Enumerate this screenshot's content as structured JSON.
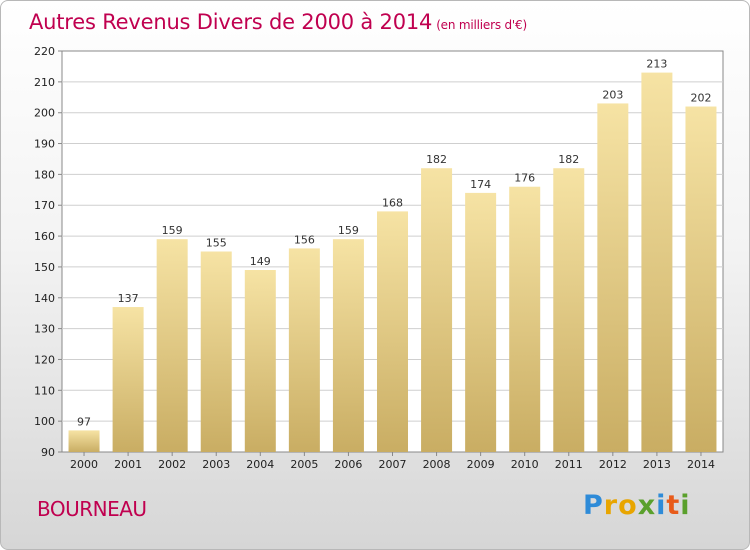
{
  "header": {
    "title": "Autres Revenus Divers de 2000 à 2014",
    "subtitle": "(en milliers d'€)"
  },
  "footer": {
    "location": "BOURNEAU",
    "logo_letters": [
      "P",
      "r",
      "o",
      "x",
      "i",
      "t",
      "i"
    ],
    "logo_colors": [
      "#2e8bd8",
      "#e8a500",
      "#e8a500",
      "#5aa02c",
      "#2e8bd8",
      "#e85b1a",
      "#5aa02c"
    ]
  },
  "colors": {
    "title": "#c0004f",
    "bar_top": "#f6e3a4",
    "bar_bottom": "#c9ad63",
    "grid": "#cfcfcf"
  },
  "chart_data": {
    "type": "bar",
    "title": "Autres Revenus Divers de 2000 à 2014",
    "subtitle": "(en milliers d'€)",
    "categories": [
      "2000",
      "2001",
      "2002",
      "2003",
      "2004",
      "2005",
      "2006",
      "2007",
      "2008",
      "2009",
      "2010",
      "2011",
      "2012",
      "2013",
      "2014"
    ],
    "values": [
      97,
      137,
      159,
      155,
      149,
      156,
      159,
      168,
      182,
      174,
      176,
      182,
      203,
      213,
      202
    ],
    "ylim": [
      90,
      220
    ],
    "yticks": [
      90,
      100,
      110,
      120,
      130,
      140,
      150,
      160,
      170,
      180,
      190,
      200,
      210,
      220
    ],
    "grid": true,
    "xlabel": "",
    "ylabel": ""
  }
}
